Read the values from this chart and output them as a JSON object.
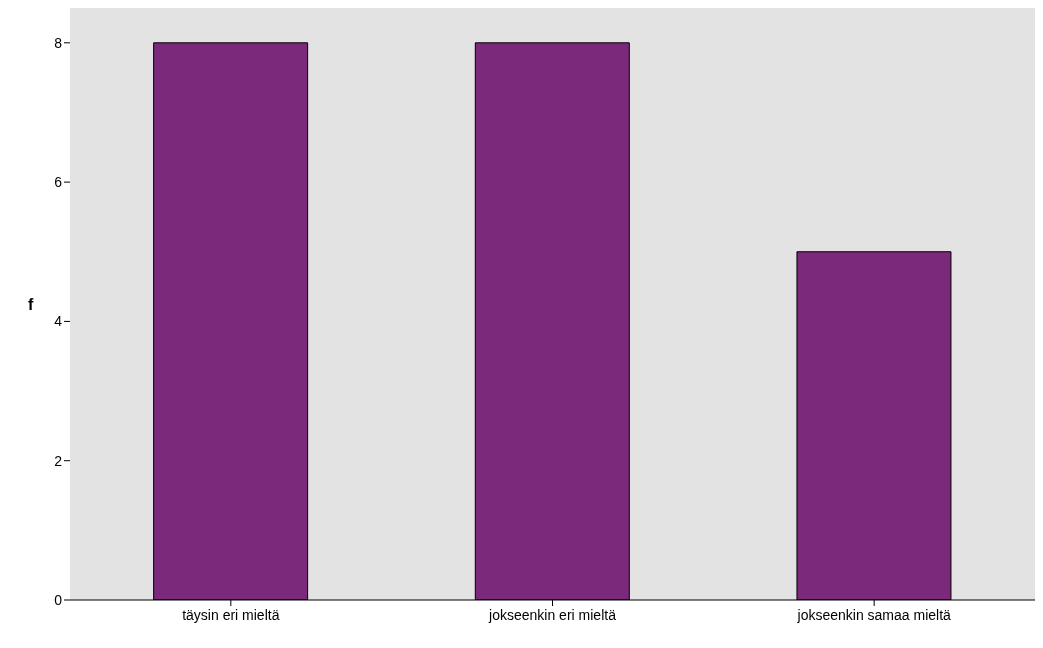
{
  "chart_data": {
    "type": "bar",
    "ylabel": "f",
    "categories": [
      "täysin eri mieltä",
      "jokseenkin eri mieltä",
      "jokseenkin samaa mieltä"
    ],
    "values": [
      8,
      8,
      5
    ],
    "color": "#7b2a7b",
    "ylim": [
      0,
      8.5
    ],
    "yticks": [
      0,
      2,
      4,
      6,
      8
    ],
    "grid": false
  }
}
